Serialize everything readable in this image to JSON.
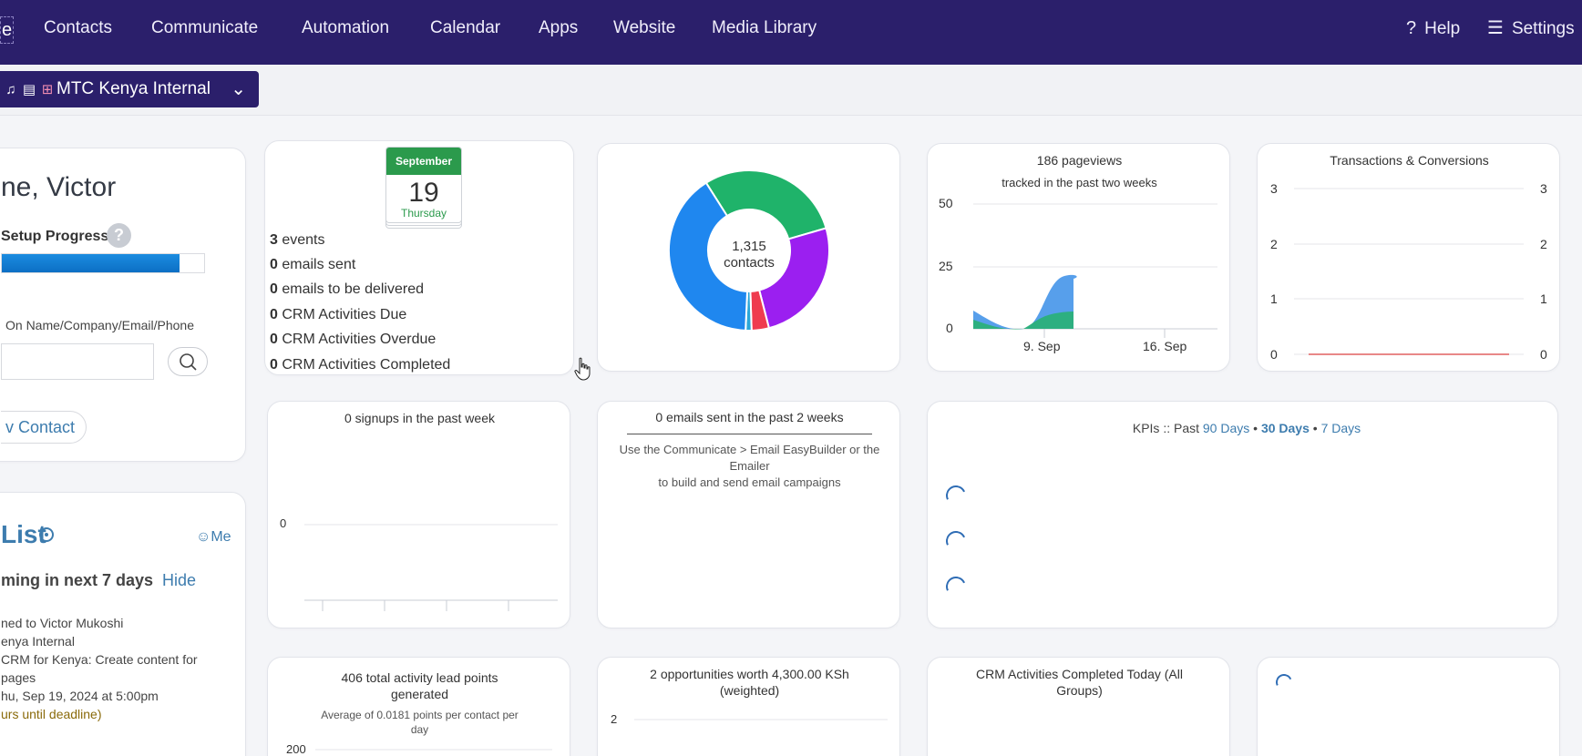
{
  "nav": {
    "cut_label": "e",
    "items": [
      "Contacts",
      "Communicate",
      "Automation",
      "Calendar",
      "Apps",
      "Website",
      "Media Library"
    ],
    "help_label": "Help",
    "settings_label": "Settings"
  },
  "account": {
    "name": "MTC Kenya Internal"
  },
  "welcome": {
    "title": "ne, Victor",
    "setup_label": "Setup Progress",
    "setup_progress": 0.88,
    "search_label": "On Name/Company/Email/Phone",
    "search_value": "",
    "new_contact_label": "v Contact"
  },
  "calendar": {
    "month": "September",
    "day": "19",
    "weekday": "Thursday",
    "stats": [
      {
        "num": "3",
        "label": "events"
      },
      {
        "num": "0",
        "label": "emails sent"
      },
      {
        "num": "0",
        "label": "emails to be delivered"
      },
      {
        "num": "0",
        "label": "CRM Activities Due"
      },
      {
        "num": "0",
        "label": "CRM Activities Overdue"
      },
      {
        "num": "0",
        "label": "CRM Activities Completed"
      }
    ]
  },
  "donut": {
    "center_number": "1,315",
    "center_label": "contacts",
    "slices": [
      {
        "value": 0.295,
        "color": "#1fb36a"
      },
      {
        "value": 0.255,
        "color": "#9b1ff0"
      },
      {
        "value": 0.035,
        "color": "#ef3b4f"
      },
      {
        "value": 0.012,
        "color": "#2aa6d8"
      },
      {
        "value": 0.403,
        "color": "#1f87ef"
      }
    ]
  },
  "pageviews": {
    "title": "186 pageviews",
    "subtitle": "tracked in the past two weeks",
    "y_ticks": [
      "50",
      "25",
      "0"
    ],
    "x_ticks": [
      "9. Sep",
      "16. Sep"
    ]
  },
  "transactions": {
    "title": "Transactions & Conversions",
    "y_ticks": [
      "3",
      "2",
      "1",
      "0"
    ]
  },
  "signups": {
    "title": "0 signups in the past week",
    "y_tick": "0"
  },
  "emails": {
    "title": "0 emails sent in the past 2 weeks",
    "desc1": "Use the Communicate > Email EasyBuilder or the",
    "desc2": "Emailer",
    "desc3": "to build and send email campaigns"
  },
  "kpi": {
    "prefix": "KPIs :: Past ",
    "opt90": "90 Days",
    "sep": " • ",
    "opt30": "30 Days",
    "opt7": "7 Days"
  },
  "tasks": {
    "title": "List",
    "me_label": "Me",
    "upcoming": "ming in next 7 days",
    "hide_label": "Hide",
    "lines": [
      "ned to Victor Mukoshi",
      "enya Internal",
      "CRM for Kenya: Create content for",
      "pages",
      "hu, Sep 19, 2024 at 5:00pm",
      "urs until deadline)"
    ]
  },
  "lead_points": {
    "title1": "406 total activity lead points",
    "title2": "generated",
    "sub1": "Average of 0.0181 points per contact per",
    "sub2": "day",
    "y_tick": "200"
  },
  "opportunities": {
    "title1": "2 opportunities worth 4,300.00 KSh",
    "title2": "(weighted)",
    "y_tick": "2"
  },
  "crm_completed": {
    "title1": "CRM Activities Completed Today (All",
    "title2": "Groups)"
  }
}
